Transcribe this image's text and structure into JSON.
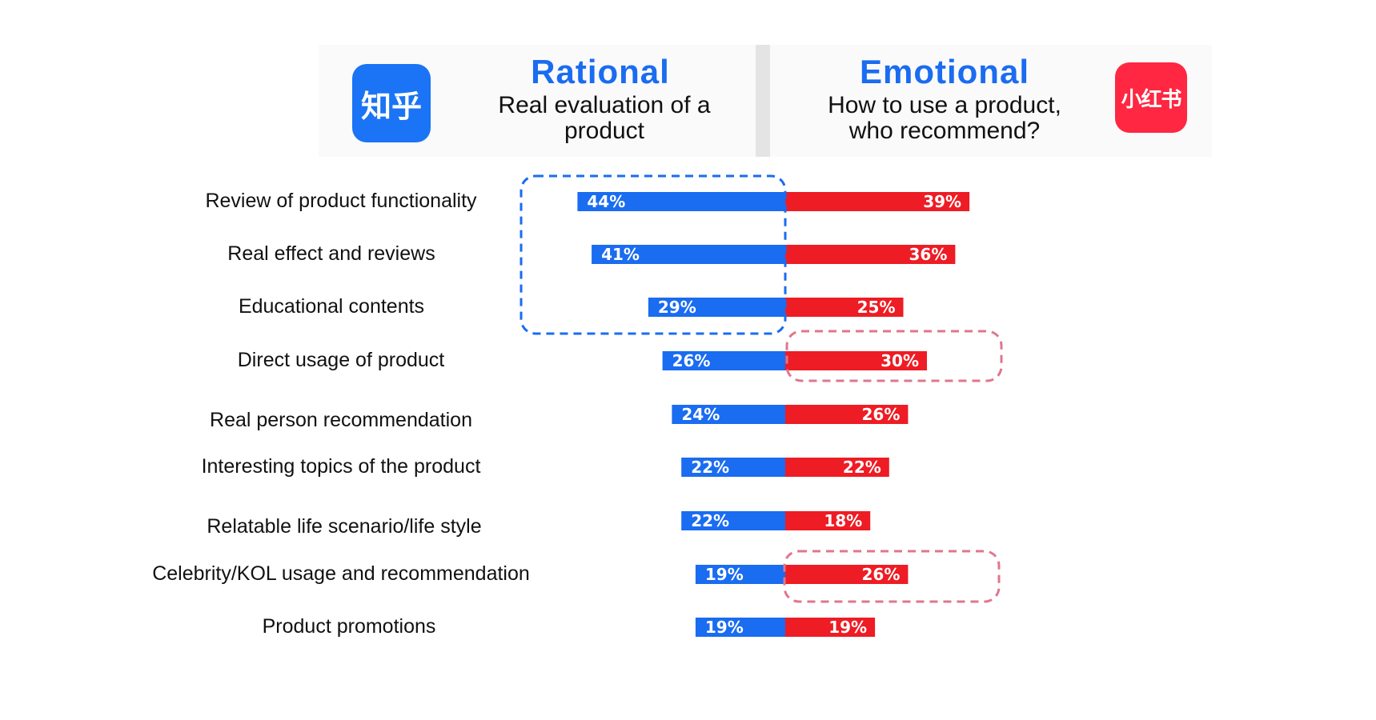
{
  "header": {
    "left_logo_text": "知乎",
    "left_title": "Rational",
    "left_subtitle": "Real evaluation of a\nproduct",
    "right_title": "Emotional",
    "right_subtitle": "How to use a product,\nwho recommend?",
    "right_logo_text": "小红书"
  },
  "colors": {
    "rational": "#1a6cf0",
    "emotional": "#ee1c24",
    "blue_box": "#1a6cf0",
    "pink_box": "#e0768e"
  },
  "chart_data": {
    "type": "bar",
    "orientation": "diverging-horizontal",
    "categories": [
      "Review of product functionality",
      "Real effect and reviews",
      "Educational contents",
      "Direct usage of product",
      "Real person recommendation",
      "Interesting topics of the product",
      "Relatable life scenario/life style",
      "Celebrity/KOL usage and recommendation",
      "Product promotions"
    ],
    "series": [
      {
        "name": "Rational",
        "values": [
          44,
          41,
          29,
          26,
          24,
          22,
          22,
          19,
          19
        ],
        "labels": [
          "44%",
          "41%",
          "29%",
          "26%",
          "24%",
          "22%",
          "22%",
          "19%",
          "19%"
        ]
      },
      {
        "name": "Emotional",
        "values": [
          39,
          36,
          25,
          30,
          26,
          22,
          18,
          26,
          19
        ],
        "labels": [
          "39%",
          "36%",
          "25%",
          "30%",
          "26%",
          "22%",
          "18%",
          "26%",
          "19%"
        ]
      }
    ],
    "unit": "%",
    "highlights": [
      {
        "series": "Rational",
        "categories": [
          "Review of product functionality",
          "Real effect and reviews",
          "Educational contents"
        ]
      },
      {
        "series": "Emotional",
        "categories": [
          "Direct usage of product"
        ]
      },
      {
        "series": "Emotional",
        "categories": [
          "Celebrity/KOL usage and recommendation"
        ]
      }
    ]
  }
}
